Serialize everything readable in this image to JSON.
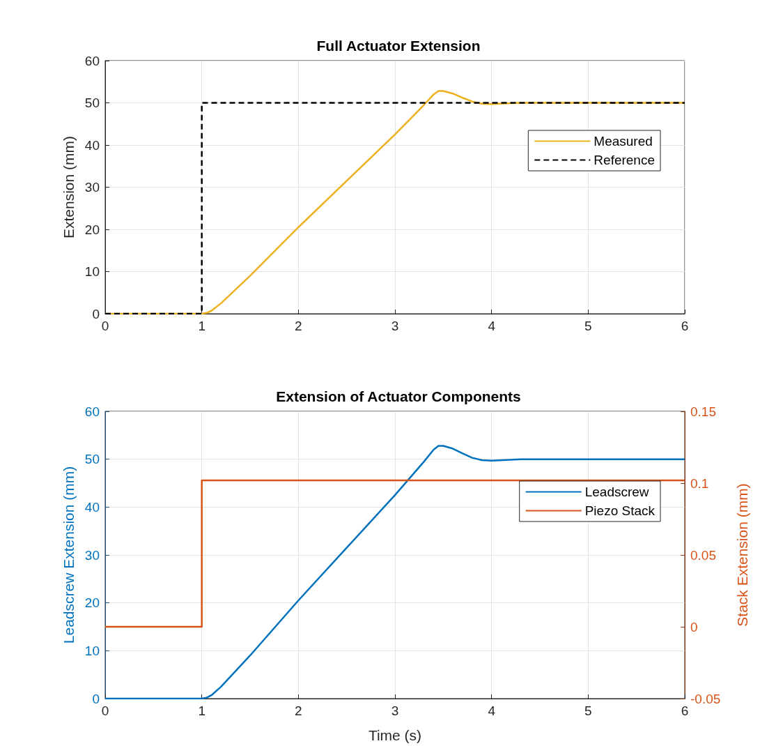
{
  "chart_data": [
    {
      "type": "line",
      "title": "Full Actuator Extension",
      "ylabel": "Extension (mm)",
      "xlim": [
        0,
        6
      ],
      "xticks": [
        0,
        1,
        2,
        3,
        4,
        5,
        6
      ],
      "ylim": [
        0,
        60
      ],
      "yticks": [
        0,
        10,
        20,
        30,
        40,
        50,
        60
      ],
      "grid": true,
      "legend": "right",
      "marker": "none",
      "series": [
        {
          "name": "Measured",
          "color": "#edb120",
          "line_style": "solid",
          "x": [
            0,
            1,
            1.05,
            1.1,
            1.2,
            1.5,
            2,
            2.5,
            3,
            3.3,
            3.4,
            3.45,
            3.5,
            3.6,
            3.7,
            3.8,
            3.9,
            4,
            4.3,
            6
          ],
          "values": [
            0,
            0,
            0.2,
            0.7,
            2.5,
            9,
            20.5,
            31.5,
            42.5,
            49.5,
            52,
            52.8,
            52.8,
            52.2,
            51.2,
            50.3,
            49.8,
            49.7,
            50,
            50
          ]
        },
        {
          "name": "Reference",
          "color": "#000000",
          "line_style": "dashed",
          "x": [
            0,
            1,
            1,
            6
          ],
          "values": [
            0,
            0,
            50,
            50
          ]
        }
      ]
    },
    {
      "type": "line",
      "title": "Extension of Actuator Components",
      "xlabel": "Time (s)",
      "ylabel": "Leadscrew Extension (mm)",
      "y2label": "Stack Extension (mm)",
      "xlim": [
        0,
        6
      ],
      "xticks": [
        0,
        1,
        2,
        3,
        4,
        5,
        6
      ],
      "ylim": [
        0,
        60
      ],
      "yticks": [
        0,
        10,
        20,
        30,
        40,
        50,
        60
      ],
      "y2lim": [
        -0.05,
        0.15
      ],
      "y2ticks": [
        -0.05,
        0,
        0.05,
        0.1,
        0.15
      ],
      "grid": true,
      "legend": "right",
      "marker": "none",
      "series": [
        {
          "name": "Leadscrew",
          "color": "#0072bd",
          "line_style": "solid",
          "x": [
            0,
            1,
            1.05,
            1.1,
            1.2,
            1.5,
            2,
            2.5,
            3,
            3.3,
            3.4,
            3.45,
            3.5,
            3.6,
            3.7,
            3.8,
            3.9,
            4,
            4.3,
            6
          ],
          "values": [
            0,
            0,
            0.2,
            0.7,
            2.5,
            9,
            20.5,
            31.5,
            42.5,
            49.5,
            52,
            52.8,
            52.8,
            52.2,
            51.2,
            50.3,
            49.8,
            49.7,
            50,
            50
          ]
        },
        {
          "name": "Piezo Stack",
          "color": "#d95319",
          "line_style": "solid",
          "axis": "y2",
          "x": [
            0,
            1,
            1,
            6
          ],
          "values": [
            0,
            0,
            0.102,
            0.102
          ]
        }
      ]
    }
  ]
}
